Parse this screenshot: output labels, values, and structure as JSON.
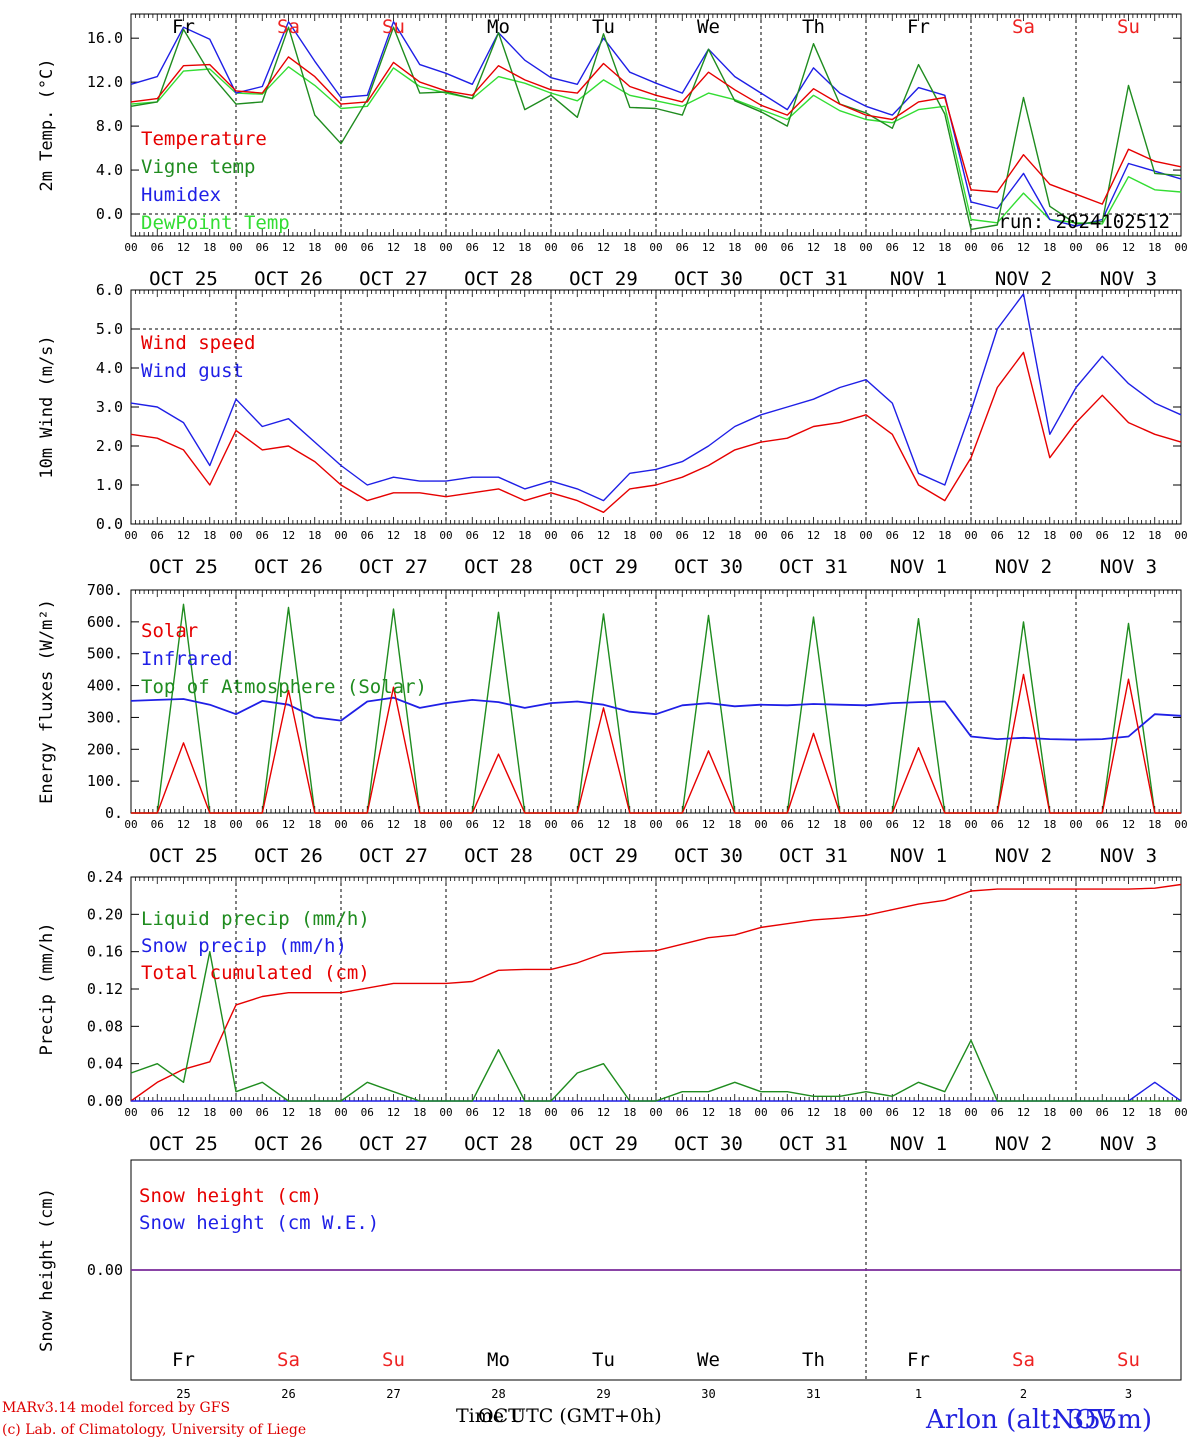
{
  "colors": {
    "red": "#e60000",
    "green": "#1f8c1f",
    "blue": "#1f1fe6",
    "lightgreen": "#33dd33",
    "purple": "#7a2a9a",
    "weekend": "#ee2222"
  },
  "days": [
    {
      "abbr": "Fr",
      "weekend": false,
      "date": "OCT 25",
      "num": "25"
    },
    {
      "abbr": "Sa",
      "weekend": true,
      "date": "OCT 26",
      "num": "26"
    },
    {
      "abbr": "Su",
      "weekend": true,
      "date": "OCT 27",
      "num": "27"
    },
    {
      "abbr": "Mo",
      "weekend": false,
      "date": "OCT 28",
      "num": "28"
    },
    {
      "abbr": "Tu",
      "weekend": false,
      "date": "OCT 29",
      "num": "29"
    },
    {
      "abbr": "We",
      "weekend": false,
      "date": "OCT 30",
      "num": "30"
    },
    {
      "abbr": "Th",
      "weekend": false,
      "date": "OCT 31",
      "num": "31"
    },
    {
      "abbr": "Fr",
      "weekend": false,
      "date": "NOV  1",
      "num": "1"
    },
    {
      "abbr": "Sa",
      "weekend": true,
      "date": "NOV  2",
      "num": "2"
    },
    {
      "abbr": "Su",
      "weekend": true,
      "date": "NOV  3",
      "num": "3"
    }
  ],
  "hour_labels": [
    "00",
    "06",
    "12",
    "18"
  ],
  "run_label": "run: 2024102512",
  "footer": {
    "credit_line1": "MARv3.14 model forced by GFS",
    "credit_line2": "(c) Lab. of Climatology, University of Liege",
    "xtitle": "Time UTC (GMT+0h)",
    "month_overlap": "OCT",
    "station": "Arlon (alt: 355m)",
    "station_overlap": "NOV"
  },
  "chart_data": [
    {
      "id": "temp",
      "type": "line",
      "ylabel": "2m Temp. (°C)",
      "ylim": [
        -2.0,
        18.2
      ],
      "yticks": [
        "0.0",
        "4.0",
        "8.0",
        "12.0",
        "16.0"
      ],
      "ytick_values": [
        0,
        4,
        8,
        12,
        16
      ],
      "dashed_ref": [
        0.0
      ],
      "x_hours": [
        0,
        6,
        12,
        18,
        24,
        30,
        36,
        42,
        48,
        54,
        60,
        66,
        72,
        78,
        84,
        90,
        96,
        102,
        108,
        114,
        120,
        126,
        132,
        138,
        144,
        150,
        156,
        162,
        168,
        174,
        180,
        186,
        192,
        198,
        204,
        210,
        216,
        222,
        228,
        234,
        240
      ],
      "series": [
        {
          "name": "Temperature",
          "color": "red",
          "values": [
            10.2,
            10.5,
            13.5,
            13.6,
            11.2,
            11.0,
            14.3,
            12.5,
            10.0,
            10.2,
            13.8,
            12.0,
            11.2,
            10.8,
            13.5,
            12.2,
            11.3,
            11.0,
            13.7,
            11.6,
            10.8,
            10.2,
            12.9,
            11.3,
            9.9,
            9.0,
            11.4,
            10.0,
            9.0,
            8.6,
            10.2,
            10.6,
            2.2,
            2.0,
            5.4,
            2.7,
            1.8,
            0.9,
            5.9,
            4.8,
            4.3
          ]
        },
        {
          "name": "Vigne temp",
          "color": "green",
          "values": [
            9.8,
            10.2,
            16.8,
            12.8,
            10.0,
            10.2,
            17.0,
            9.0,
            6.4,
            10.4,
            17.0,
            11.0,
            11.1,
            10.5,
            16.5,
            9.5,
            10.8,
            8.8,
            16.4,
            9.7,
            9.6,
            9.0,
            15.0,
            10.3,
            9.3,
            8.0,
            15.5,
            10.0,
            9.2,
            7.8,
            13.6,
            9.1,
            -1.4,
            -1.0,
            10.6,
            0.7,
            -0.9,
            -0.7,
            11.7,
            3.7,
            3.5
          ]
        },
        {
          "name": "Humidex",
          "color": "blue",
          "values": [
            11.8,
            12.5,
            17.0,
            15.9,
            11.0,
            11.6,
            17.5,
            13.9,
            10.6,
            10.8,
            17.5,
            13.6,
            12.8,
            11.8,
            16.5,
            14.0,
            12.4,
            11.8,
            16.0,
            12.9,
            11.9,
            11.0,
            15.0,
            12.5,
            11.0,
            9.5,
            13.3,
            11.0,
            9.8,
            9.0,
            11.5,
            10.8,
            1.1,
            0.5,
            3.7,
            -0.5,
            -1.1,
            -0.5,
            4.6,
            3.9,
            3.2
          ]
        },
        {
          "name": "DewPoint Temp",
          "color": "lightgreen",
          "values": [
            10.0,
            10.2,
            13.0,
            13.2,
            11.0,
            10.9,
            13.4,
            11.7,
            9.6,
            9.8,
            13.3,
            11.6,
            11.0,
            10.5,
            12.5,
            11.9,
            11.0,
            10.3,
            12.2,
            10.8,
            10.3,
            9.8,
            11.0,
            10.4,
            9.5,
            8.6,
            10.8,
            9.4,
            8.6,
            8.3,
            9.5,
            9.8,
            -0.5,
            -0.8,
            1.9,
            -0.5,
            -0.8,
            -0.9,
            3.4,
            2.2,
            2.0
          ]
        }
      ]
    },
    {
      "id": "wind",
      "type": "line",
      "ylabel": "10m Wind (m/s)",
      "ylim": [
        0.0,
        6.0
      ],
      "yticks": [
        "0.0",
        "1.0",
        "2.0",
        "3.0",
        "4.0",
        "5.0",
        "6.0"
      ],
      "ytick_values": [
        0,
        1,
        2,
        3,
        4,
        5,
        6
      ],
      "dashed_ref": [
        5.0
      ],
      "x_hours": [
        0,
        6,
        12,
        18,
        24,
        30,
        36,
        42,
        48,
        54,
        60,
        66,
        72,
        78,
        84,
        90,
        96,
        102,
        108,
        114,
        120,
        126,
        132,
        138,
        144,
        150,
        156,
        162,
        168,
        174,
        180,
        186,
        192,
        198,
        204,
        210,
        216,
        222,
        228,
        234,
        240
      ],
      "series": [
        {
          "name": "Wind speed",
          "color": "red",
          "values": [
            2.3,
            2.2,
            1.9,
            1.0,
            2.4,
            1.9,
            2.0,
            1.6,
            1.0,
            0.6,
            0.8,
            0.8,
            0.7,
            0.8,
            0.9,
            0.6,
            0.8,
            0.6,
            0.3,
            0.9,
            1.0,
            1.2,
            1.5,
            1.9,
            2.1,
            2.2,
            2.5,
            2.6,
            2.8,
            2.3,
            1.0,
            0.6,
            1.7,
            3.5,
            4.4,
            1.7,
            2.6,
            3.3,
            2.6,
            2.3,
            2.1
          ]
        },
        {
          "name": "Wind gust",
          "color": "blue",
          "values": [
            3.1,
            3.0,
            2.6,
            1.5,
            3.2,
            2.5,
            2.7,
            2.1,
            1.5,
            1.0,
            1.2,
            1.1,
            1.1,
            1.2,
            1.2,
            0.9,
            1.1,
            0.9,
            0.6,
            1.3,
            1.4,
            1.6,
            2.0,
            2.5,
            2.8,
            3.0,
            3.2,
            3.5,
            3.7,
            3.1,
            1.3,
            1.0,
            2.9,
            5.0,
            5.9,
            2.3,
            3.5,
            4.3,
            3.6,
            3.1,
            2.8
          ]
        }
      ]
    },
    {
      "id": "energy",
      "type": "line",
      "ylabel": "Energy fluxes (W/m²)",
      "ylim": [
        0,
        700
      ],
      "yticks": [
        "0.",
        "100.",
        "200.",
        "300.",
        "400.",
        "500.",
        "600.",
        "700."
      ],
      "ytick_values": [
        0,
        100,
        200,
        300,
        400,
        500,
        600,
        700
      ],
      "dashed_ref": [],
      "x_hours": [
        0,
        6,
        12,
        18,
        24,
        30,
        36,
        42,
        48,
        54,
        60,
        66,
        72,
        78,
        84,
        90,
        96,
        102,
        108,
        114,
        120,
        126,
        132,
        138,
        144,
        150,
        156,
        162,
        168,
        174,
        180,
        186,
        192,
        198,
        204,
        210,
        216,
        222,
        228,
        234,
        240
      ],
      "series": [
        {
          "name": "Solar",
          "color": "red",
          "values": [
            0,
            0,
            220,
            0,
            0,
            0,
            385,
            0,
            0,
            0,
            395,
            0,
            0,
            0,
            185,
            0,
            0,
            0,
            330,
            0,
            0,
            0,
            195,
            0,
            0,
            0,
            250,
            0,
            0,
            0,
            205,
            0,
            0,
            0,
            435,
            0,
            0,
            0,
            420,
            0,
            0
          ]
        },
        {
          "name": "Infrared",
          "color": "blue",
          "values": [
            352,
            355,
            358,
            340,
            310,
            352,
            340,
            300,
            290,
            350,
            362,
            330,
            345,
            355,
            348,
            330,
            345,
            350,
            340,
            318,
            310,
            338,
            345,
            335,
            340,
            338,
            342,
            340,
            338,
            345,
            348,
            350,
            240,
            232,
            236,
            232,
            230,
            232,
            240,
            310,
            305
          ]
        },
        {
          "name": "Top of Atmosphere (Solar)",
          "color": "green",
          "values": [
            0,
            0,
            655,
            0,
            0,
            0,
            645,
            0,
            0,
            0,
            640,
            0,
            0,
            0,
            630,
            0,
            0,
            0,
            625,
            0,
            0,
            0,
            620,
            0,
            0,
            0,
            615,
            0,
            0,
            0,
            610,
            0,
            0,
            0,
            600,
            0,
            0,
            0,
            595,
            0,
            0
          ]
        }
      ]
    },
    {
      "id": "precip",
      "type": "line",
      "ylabel": "Precip (mm/h)",
      "ylim": [
        0.0,
        0.24
      ],
      "yticks": [
        "0.00",
        "0.04",
        "0.08",
        "0.12",
        "0.16",
        "0.20",
        "0.24"
      ],
      "ytick_values": [
        0,
        0.04,
        0.08,
        0.12,
        0.16,
        0.2,
        0.24
      ],
      "dashed_ref": [],
      "x_hours": [
        0,
        6,
        12,
        18,
        24,
        30,
        36,
        42,
        48,
        54,
        60,
        66,
        72,
        78,
        84,
        90,
        96,
        102,
        108,
        114,
        120,
        126,
        132,
        138,
        144,
        150,
        156,
        162,
        168,
        174,
        180,
        186,
        192,
        198,
        204,
        210,
        216,
        222,
        228,
        234,
        240
      ],
      "series": [
        {
          "name": "Liquid precip (mm/h)",
          "color": "green",
          "values": [
            0.03,
            0.04,
            0.02,
            0.16,
            0.01,
            0.02,
            0.0,
            0.0,
            0.0,
            0.02,
            0.01,
            0.0,
            0.0,
            0.0,
            0.055,
            0.0,
            0.0,
            0.03,
            0.04,
            0.0,
            0.0,
            0.01,
            0.01,
            0.02,
            0.01,
            0.01,
            0.005,
            0.005,
            0.01,
            0.005,
            0.02,
            0.01,
            0.065,
            0.0,
            0.0,
            0.0,
            0.0,
            0.0,
            0.0,
            0.0,
            0.0
          ]
        },
        {
          "name": "Snow precip (mm/h)",
          "color": "blue",
          "values": [
            0,
            0,
            0,
            0,
            0,
            0,
            0,
            0,
            0,
            0,
            0,
            0,
            0,
            0,
            0,
            0,
            0,
            0,
            0,
            0,
            0,
            0,
            0,
            0,
            0,
            0,
            0,
            0,
            0,
            0,
            0,
            0,
            0,
            0,
            0,
            0,
            0,
            0,
            0,
            0.02,
            0.0
          ]
        },
        {
          "name": "Total cumulated (cm)",
          "color": "red",
          "values": [
            0.0,
            0.02,
            0.034,
            0.042,
            0.103,
            0.112,
            0.116,
            0.116,
            0.116,
            0.121,
            0.126,
            0.126,
            0.126,
            0.128,
            0.14,
            0.141,
            0.141,
            0.148,
            0.158,
            0.16,
            0.161,
            0.168,
            0.175,
            0.178,
            0.186,
            0.19,
            0.194,
            0.196,
            0.199,
            0.205,
            0.211,
            0.215,
            0.225,
            0.227,
            0.227,
            0.227,
            0.227,
            0.227,
            0.227,
            0.228,
            0.232
          ]
        }
      ]
    },
    {
      "id": "snow",
      "type": "line",
      "ylabel": "Snow height (cm)",
      "ylim": [
        -1,
        1
      ],
      "yticks": [
        "0.00"
      ],
      "ytick_values": [
        0
      ],
      "dashed_ref": [],
      "x_hours": [
        0,
        240
      ],
      "series": [
        {
          "name": "Snow height (cm)",
          "color": "red",
          "values": [
            0,
            0
          ]
        },
        {
          "name": "Snow height (cm W.E.)",
          "color": "blue",
          "values": [
            0,
            0
          ]
        }
      ]
    }
  ]
}
